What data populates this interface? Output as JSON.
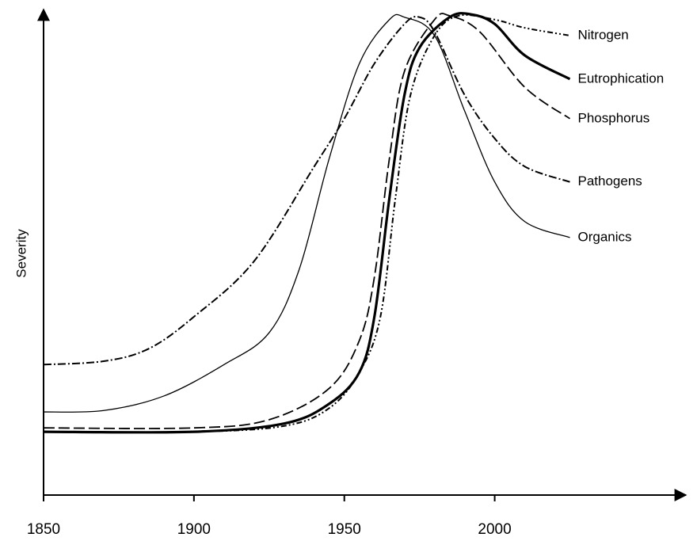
{
  "chart_data": {
    "type": "line",
    "y_label": "Severity",
    "xlim": [
      1850,
      2062
    ],
    "xticks": [
      1850,
      1900,
      1950,
      2000
    ],
    "ylim": [
      0,
      100
    ],
    "series": [
      {
        "name": "Nitrogen",
        "color": "#000",
        "style": "dash-dot-dot",
        "x": [
          1850,
          1900,
          1930,
          1945,
          1955,
          1962,
          1967,
          1972,
          1980,
          1988,
          2000,
          2010,
          2025
        ],
        "values": [
          13.1,
          13.1,
          14.3,
          18.0,
          25.4,
          36.9,
          61.5,
          82.8,
          95.1,
          99.2,
          98.4,
          96.7,
          95.1
        ]
      },
      {
        "name": "Eutrophication",
        "color": "#000",
        "style": "thick",
        "x": [
          1850,
          1900,
          1930,
          1945,
          1955,
          1960,
          1965,
          1970,
          1975,
          1985,
          1992,
          2000,
          2010,
          2025
        ],
        "values": [
          13.1,
          13.1,
          14.8,
          18.9,
          25.4,
          36.9,
          61.5,
          82.8,
          92.6,
          98.9,
          99.5,
          97.5,
          91.0,
          86.1
        ]
      },
      {
        "name": "Phosphorus",
        "color": "#000",
        "style": "dash",
        "x": [
          1850,
          1900,
          1925,
          1945,
          1955,
          1960,
          1965,
          1970,
          1980,
          1985,
          1995,
          2010,
          2025
        ],
        "values": [
          13.9,
          13.9,
          15.6,
          22.1,
          32.0,
          45.1,
          69.7,
          87.7,
          98.4,
          99.2,
          95.9,
          84.4,
          77.9
        ]
      },
      {
        "name": "Pathogens",
        "color": "#000",
        "style": "dash-dot",
        "x": [
          1850,
          1870,
          1885,
          1900,
          1920,
          1940,
          1950,
          1960,
          1970,
          1975,
          1980,
          1990,
          2000,
          2010,
          2025
        ],
        "values": [
          27.0,
          27.7,
          30.3,
          36.9,
          48.4,
          68.0,
          77.9,
          89.3,
          97.5,
          98.9,
          95.9,
          82.8,
          73.8,
          68.0,
          64.8
        ]
      },
      {
        "name": "Organics",
        "color": "#000",
        "style": "thin",
        "x": [
          1850,
          1870,
          1890,
          1910,
          1925,
          1935,
          1945,
          1955,
          1965,
          1970,
          1980,
          1990,
          2000,
          2010,
          2025
        ],
        "values": [
          17.2,
          17.5,
          20.5,
          27.0,
          33.6,
          46.7,
          69.7,
          89.3,
          98.4,
          98.9,
          95.1,
          79.5,
          64.8,
          56.6,
          53.3
        ]
      }
    ]
  }
}
